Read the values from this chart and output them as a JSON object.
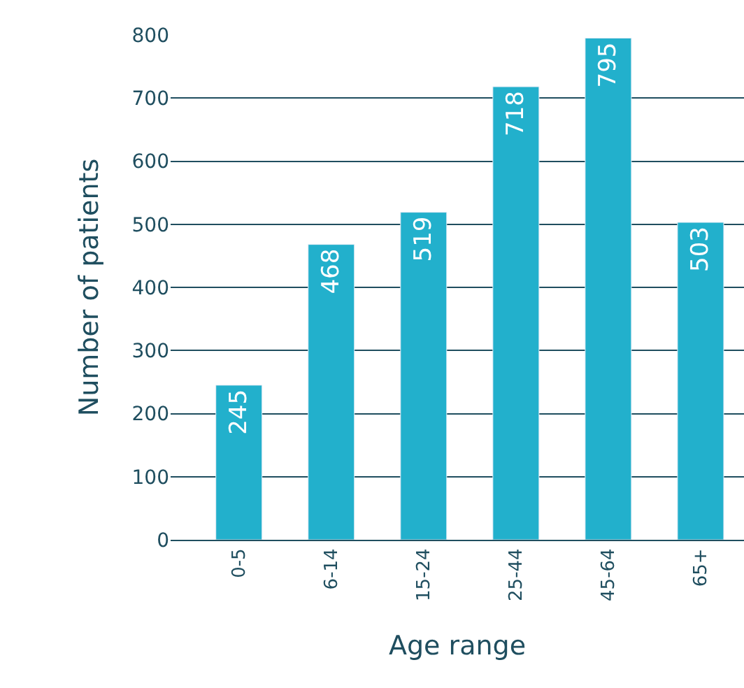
{
  "chart_data": {
    "type": "bar",
    "xlabel": "Age range",
    "ylabel": "Number of patients",
    "categories": [
      "0-5",
      "6-14",
      "15-24",
      "25-44",
      "45-64",
      "65+"
    ],
    "values": [
      245,
      468,
      519,
      718,
      795,
      503
    ],
    "color": "#22b0cc",
    "ylim": [
      0,
      800
    ],
    "yticks": [
      0,
      100,
      200,
      300,
      400,
      500,
      600,
      700,
      800
    ],
    "grid": "y",
    "data_labels": true
  }
}
